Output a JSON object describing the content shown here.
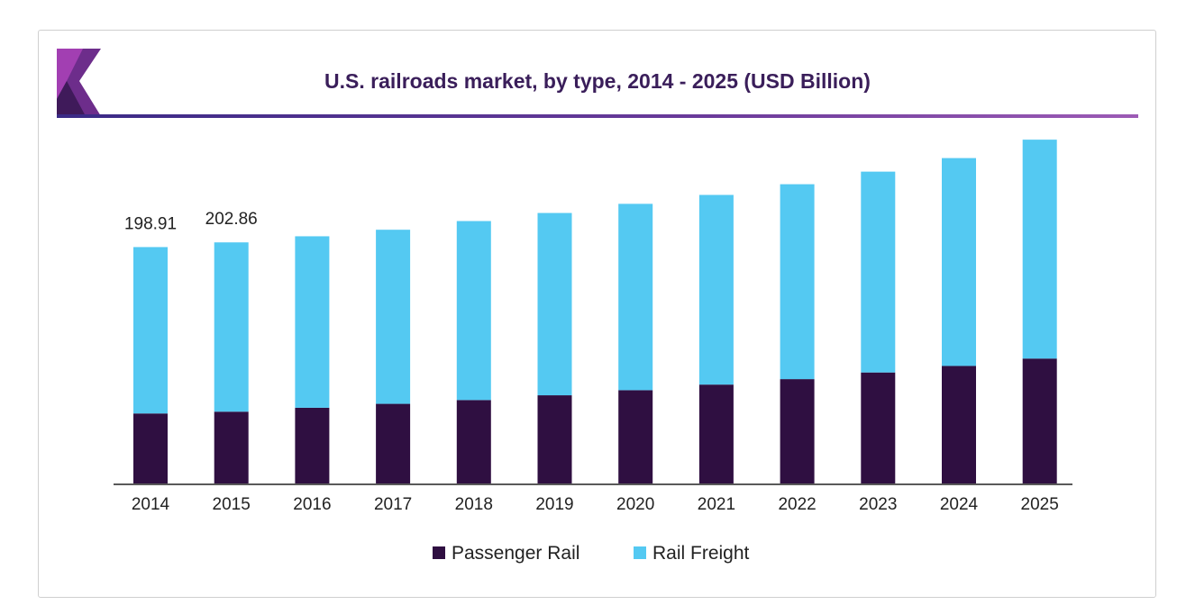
{
  "chart_data": {
    "type": "bar",
    "stacked": true,
    "title": "U.S. railroads market, by type, 2014 - 2025 (USD Billion)",
    "categories": [
      "2014",
      "2015",
      "2016",
      "2017",
      "2018",
      "2019",
      "2020",
      "2021",
      "2022",
      "2023",
      "2024",
      "2025"
    ],
    "series": [
      {
        "name": "Passenger Rail",
        "color": "#2f0f41",
        "values": [
          58.9,
          60.4,
          63.7,
          67.0,
          70.2,
          74.2,
          78.5,
          83.2,
          87.8,
          93.4,
          98.9,
          105.1
        ]
      },
      {
        "name": "Rail Freight",
        "color": "#54c9f2",
        "values": [
          140.01,
          142.46,
          144.3,
          146.5,
          150.6,
          153.4,
          156.8,
          159.6,
          164.0,
          169.0,
          174.9,
          184.2
        ]
      }
    ],
    "data_labels": {
      "2014": "198.91",
      "2015": "202.86"
    },
    "ylim": [
      0,
      300
    ],
    "grid": false,
    "legend": "bottom"
  }
}
